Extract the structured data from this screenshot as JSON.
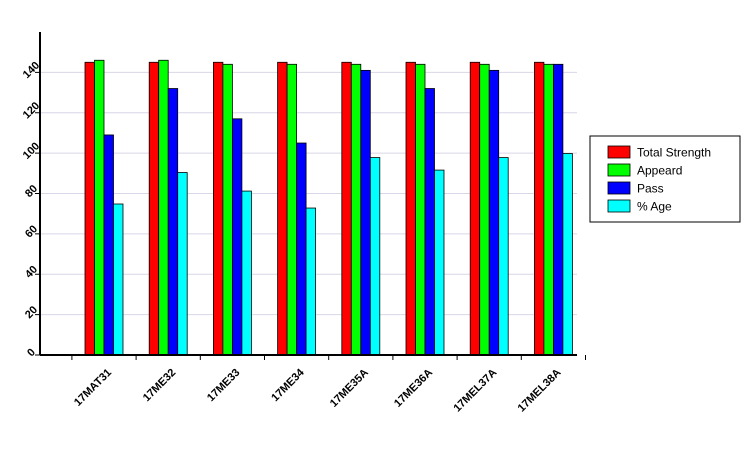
{
  "chart_data": {
    "type": "bar",
    "title": "",
    "xlabel": "",
    "ylabel": "",
    "ylim": [
      0,
      160
    ],
    "yticks": [
      0,
      20,
      40,
      60,
      80,
      100,
      120,
      140
    ],
    "grid": true,
    "legend_position": "right",
    "categories": [
      "17MAT31",
      "17ME32",
      "17ME33",
      "17ME34",
      "17ME35A",
      "17ME36A",
      "17MEL37A",
      "17MEL38A"
    ],
    "series": [
      {
        "name": "Total Strength",
        "color": "#ff0000",
        "values": [
          145,
          145,
          145,
          145,
          145,
          145,
          145,
          145
        ]
      },
      {
        "name": "Appeard",
        "color": "#00ff00",
        "values": [
          146,
          146,
          144,
          144,
          144,
          144,
          144,
          144
        ]
      },
      {
        "name": "Pass",
        "color": "#0000ff",
        "values": [
          109,
          132,
          117,
          105,
          141,
          132,
          141,
          144
        ]
      },
      {
        "name": "% Age",
        "color": "#00ffff",
        "values": [
          74.8,
          90.4,
          81.2,
          72.8,
          97.8,
          91.6,
          97.8,
          99.8
        ]
      }
    ]
  }
}
